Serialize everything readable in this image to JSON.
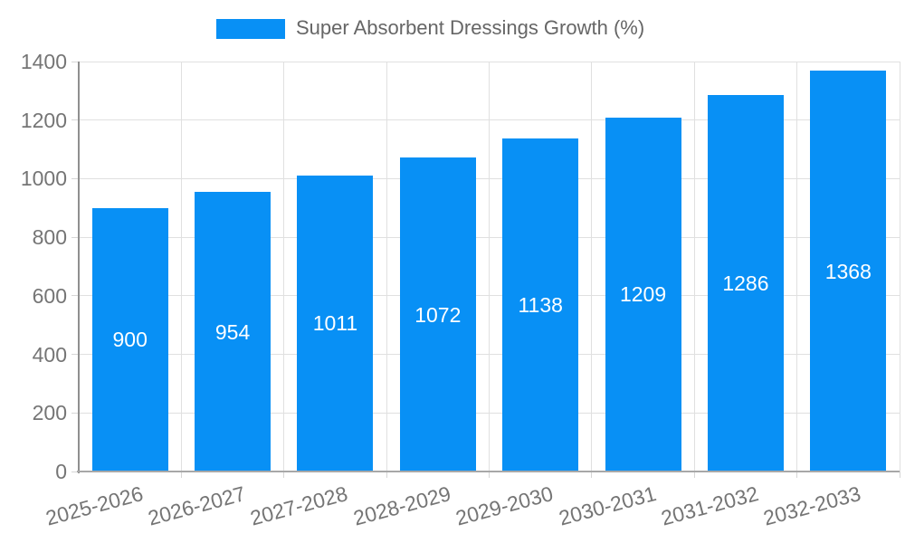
{
  "legend": {
    "label": "Super Absorbent Dressings Growth (%)",
    "swatch_color": "#0890F5"
  },
  "chart_data": {
    "type": "bar",
    "title": "Super Absorbent Dressings Growth (%)",
    "categories": [
      "2025-2026",
      "2026-2027",
      "2027-2028",
      "2028-2029",
      "2029-2030",
      "2030-2031",
      "2031-2032",
      "2032-2033"
    ],
    "values": [
      900,
      954,
      1011,
      1072,
      1138,
      1209,
      1286,
      1368
    ],
    "series": [
      {
        "name": "Super Absorbent Dressings Growth (%)",
        "values": [
          900,
          954,
          1011,
          1072,
          1138,
          1209,
          1286,
          1368
        ]
      }
    ],
    "value_labels_shown": true,
    "xlabel": "",
    "ylabel": "",
    "ylim": [
      0,
      1400
    ],
    "yticks": [
      0,
      200,
      400,
      600,
      800,
      1000,
      1200,
      1400
    ],
    "grid": true,
    "legend_position": "top",
    "x_tick_rotation_deg": -15
  },
  "colors": {
    "bar": "#0890F5",
    "value_label": "#FFFFFF",
    "grid": "#E0E0E0",
    "axis": "#999999",
    "axis_text": "#757575",
    "legend_text": "#666666",
    "background": "#FFFFFF"
  }
}
